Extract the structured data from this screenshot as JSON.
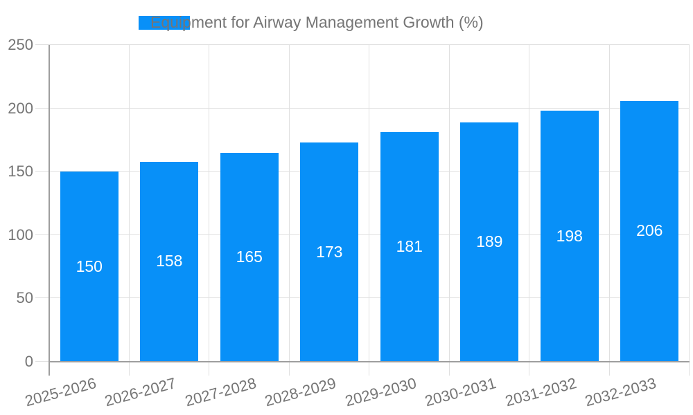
{
  "chart_data": {
    "type": "bar",
    "legend": "Equipment for Airway Management Growth (%)",
    "legend_position": "top-center",
    "categories": [
      "2025-2026",
      "2026-2027",
      "2027-2028",
      "2028-2029",
      "2029-2030",
      "2030-2031",
      "2031-2032",
      "2032-2033"
    ],
    "values": [
      150,
      158,
      165,
      173,
      181,
      189,
      198,
      206
    ],
    "value_labels_shown": true,
    "xlabel": "",
    "ylabel": "",
    "ylim": [
      0,
      250
    ],
    "yticks": [
      0,
      50,
      100,
      150,
      200,
      250
    ],
    "grid": true,
    "x_tick_label_rotation_deg": -15,
    "colors": {
      "bar": "#0890f8",
      "axis": "#9e9e9e",
      "grid": "#e0e0e0",
      "tick_label": "#757575",
      "value_label": "#ffffff",
      "background": "#ffffff"
    }
  }
}
